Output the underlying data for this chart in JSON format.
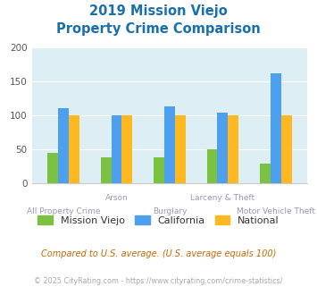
{
  "title_line1": "2019 Mission Viejo",
  "title_line2": "Property Crime Comparison",
  "title_color": "#1a6faf",
  "categories": [
    "All Property Crime",
    "Arson",
    "Burglary",
    "Larceny & Theft",
    "Motor Vehicle Theft"
  ],
  "xtick_labels": [
    "All Property Crime",
    "Arson",
    "Burglary",
    "Larceny & Theft",
    "Motor Vehicle Theft"
  ],
  "mission_viejo": [
    44,
    38,
    38,
    49,
    29
  ],
  "california": [
    110,
    100,
    113,
    103,
    162
  ],
  "national": [
    100,
    100,
    100,
    100,
    100
  ],
  "color_mv": "#7bc142",
  "color_ca": "#4d9fef",
  "color_na": "#ffb820",
  "ylim": [
    0,
    200
  ],
  "yticks": [
    0,
    50,
    100,
    150,
    200
  ],
  "plot_bg": "#ddeef5",
  "footnote1": "Compared to U.S. average. (U.S. average equals 100)",
  "footnote2": "© 2025 CityRating.com - https://www.cityrating.com/crime-statistics/",
  "footnote1_color": "#cc6600",
  "footnote2_color": "#aaaaaa",
  "legend_labels": [
    "Mission Viejo",
    "California",
    "National"
  ],
  "xlabel_color": "#9999bb",
  "ytick_color": "#555566",
  "bar_width": 0.2,
  "title_fontsize": 10.5
}
